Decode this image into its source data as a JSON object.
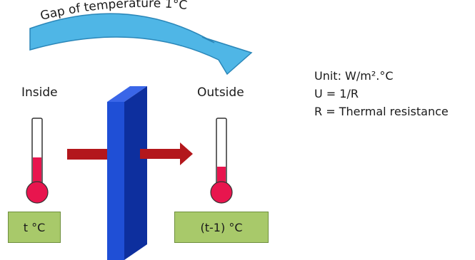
{
  "arc_label": "Gap of temperature 1°C",
  "inside": {
    "label": "Inside",
    "temperature": "t °C",
    "fill_level": 0.45
  },
  "outside": {
    "label": "Outside",
    "temperature": "(t-1) °C",
    "fill_level": 0.32
  },
  "info": {
    "unit": "Unit: W/m².°C",
    "formula": "U = 1/R",
    "definition": "R = Thermal resistance"
  },
  "colors": {
    "arrow_fill": "#4fb6e6",
    "arrow_stroke": "#2a86b8",
    "wall_front": "#1f4fd6",
    "wall_side": "#0d2f9e",
    "heat_arrow": "#b3171c",
    "mercury": "#e8154e",
    "label_box": "#a8c96a"
  }
}
